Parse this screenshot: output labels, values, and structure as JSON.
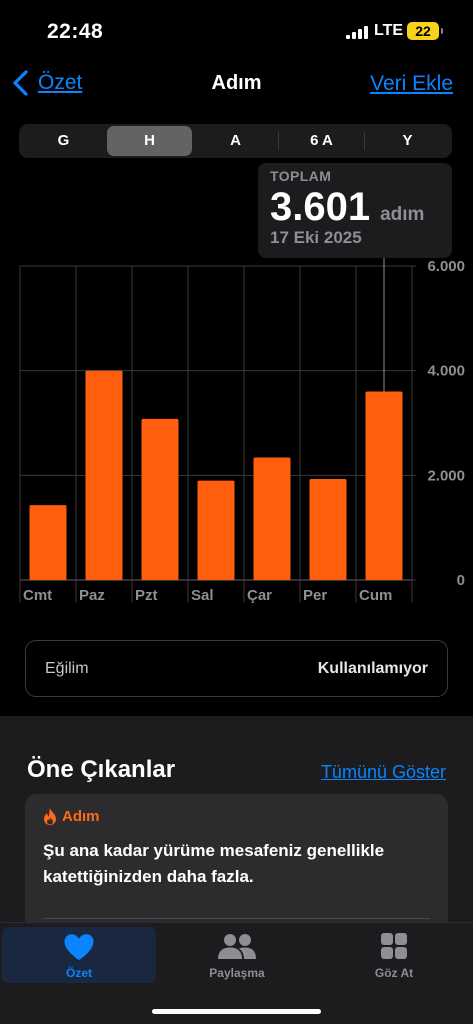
{
  "status": {
    "time": "22:48",
    "network": "LTE",
    "battery": "22"
  },
  "nav": {
    "back_label": "Özet",
    "title": "Adım",
    "action_label": "Veri Ekle"
  },
  "segments": [
    {
      "label": "G",
      "active": false
    },
    {
      "label": "H",
      "active": true
    },
    {
      "label": "A",
      "active": false
    },
    {
      "label": "6 A",
      "active": false
    },
    {
      "label": "Y",
      "active": false
    }
  ],
  "tooltip": {
    "label": "TOPLAM",
    "value": "3.601",
    "unit": "adım",
    "date": "17 Eki 2025"
  },
  "chart_data": {
    "type": "bar",
    "categories": [
      "Cmt",
      "Paz",
      "Pzt",
      "Sal",
      "Çar",
      "Per",
      "Cum"
    ],
    "values": [
      1430,
      4000,
      3080,
      1900,
      2340,
      1930,
      3601
    ],
    "ylim": [
      0,
      6000
    ],
    "yticks": [
      0,
      2000,
      4000,
      6000
    ],
    "ytick_labels": [
      "0",
      "2.000",
      "4.000",
      "6.000"
    ],
    "selected_index": 6,
    "bar_color": "#ff5e0e",
    "grid": true
  },
  "trend": {
    "label": "Eğilim",
    "value": "Kullanılamıyor"
  },
  "highlights": {
    "title": "Öne Çıkanlar",
    "link": "Tümünü Göster",
    "card": {
      "category": "Adım",
      "text": "Şu ana kadar yürüme mesafeniz genellikle katettiğinizden daha fazla."
    }
  },
  "tabs": [
    {
      "label": "Özet",
      "icon": "heart-icon",
      "active": true
    },
    {
      "label": "Paylaşma",
      "icon": "people-icon",
      "active": false
    },
    {
      "label": "Göz At",
      "icon": "grid-icon",
      "active": false
    }
  ],
  "colors": {
    "accent": "#0a84ff",
    "bar": "#ff5e0e",
    "battery": "#f7d21b"
  }
}
